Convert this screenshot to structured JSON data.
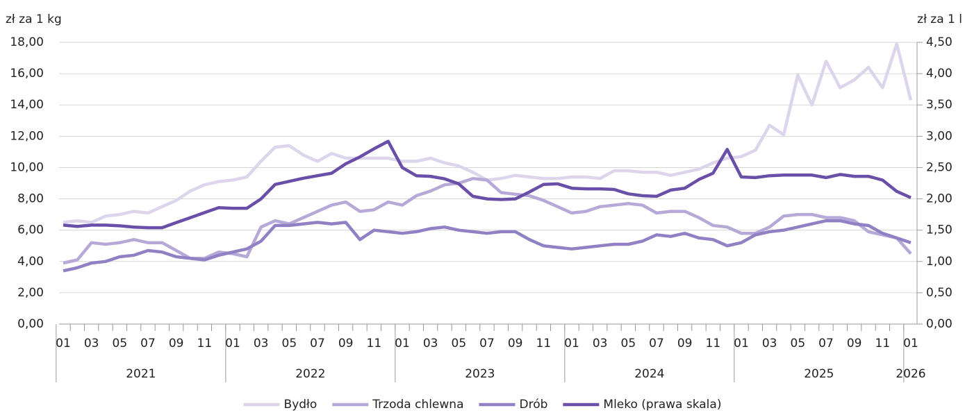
{
  "chart_data": {
    "type": "line",
    "y_label": "zł za 1 kg",
    "y2_label": "zł za 1 l",
    "categories": [
      "01",
      null,
      "03",
      null,
      "05",
      null,
      "07",
      null,
      "09",
      null,
      "11",
      null,
      "01",
      null,
      "03",
      null,
      "05",
      null,
      "07",
      null,
      "09",
      null,
      "11",
      null,
      "01",
      null,
      "03",
      null,
      "05",
      null,
      "07",
      null,
      "09",
      null,
      "11",
      null,
      "01",
      null,
      "03",
      null,
      "05",
      null,
      "07",
      null,
      "09",
      null,
      "11",
      null,
      "01",
      null,
      "03",
      null,
      "05",
      null,
      "07",
      null,
      "09",
      null,
      "11",
      null,
      "01"
    ],
    "years": [
      "2021",
      "2022",
      "2023",
      "2024",
      "2025",
      "2026"
    ],
    "ylim": [
      0,
      18
    ],
    "yticks": [
      {
        "value": 0,
        "label": "0,00"
      },
      {
        "value": 2,
        "label": "2,00"
      },
      {
        "value": 4,
        "label": "4,00"
      },
      {
        "value": 6,
        "label": "6,00"
      },
      {
        "value": 8,
        "label": "8,00"
      },
      {
        "value": 10,
        "label": "10,00"
      },
      {
        "value": 12,
        "label": "12,00"
      },
      {
        "value": 14,
        "label": "14,00"
      },
      {
        "value": 16,
        "label": "16,00"
      },
      {
        "value": 18,
        "label": "18,00"
      }
    ],
    "y2lim": [
      0,
      4.5
    ],
    "y2ticks": [
      {
        "value": 0,
        "label": "0,00"
      },
      {
        "value": 0.5,
        "label": "0,50"
      },
      {
        "value": 1,
        "label": "1,00"
      },
      {
        "value": 1.5,
        "label": "1,50"
      },
      {
        "value": 2,
        "label": "2,00"
      },
      {
        "value": 2.5,
        "label": "2,50"
      },
      {
        "value": 3,
        "label": "3,00"
      },
      {
        "value": 3.5,
        "label": "3,50"
      },
      {
        "value": 4,
        "label": "4,00"
      },
      {
        "value": 4.5,
        "label": "4,50"
      }
    ],
    "grid": true,
    "series": [
      {
        "name": "Bydło",
        "color": "#dcd5ec",
        "values": [
          6.5,
          6.6,
          6.5,
          6.9,
          7.0,
          7.2,
          7.1,
          7.5,
          7.9,
          8.5,
          8.9,
          9.1,
          9.2,
          9.4,
          10.4,
          11.3,
          11.4,
          10.8,
          10.4,
          10.9,
          10.6,
          10.6,
          10.6,
          10.6,
          10.4,
          10.4,
          10.6,
          10.3,
          10.1,
          9.7,
          9.2,
          9.3,
          9.5,
          9.4,
          9.3,
          9.3,
          9.4,
          9.4,
          9.3,
          9.8,
          9.8,
          9.7,
          9.7,
          9.5,
          9.7,
          9.9,
          10.3,
          10.6,
          10.7,
          11.1,
          12.7,
          12.1,
          15.9,
          14.0,
          16.8,
          15.1,
          15.6,
          16.4,
          15.1,
          17.9,
          14.3
        ]
      },
      {
        "name": "Trzoda chlewna",
        "color": "#b6a9d8",
        "values": [
          3.9,
          4.1,
          5.2,
          5.1,
          5.2,
          5.4,
          5.2,
          5.2,
          4.7,
          4.2,
          4.2,
          4.6,
          4.5,
          4.3,
          6.2,
          6.6,
          6.4,
          6.8,
          7.2,
          7.6,
          7.8,
          7.2,
          7.3,
          7.8,
          7.6,
          8.2,
          8.5,
          8.9,
          9.0,
          9.3,
          9.2,
          8.4,
          8.3,
          8.2,
          7.9,
          7.5,
          7.1,
          7.2,
          7.5,
          7.6,
          7.7,
          7.6,
          7.1,
          7.2,
          7.2,
          6.8,
          6.3,
          6.2,
          5.8,
          5.8,
          6.2,
          6.9,
          7.0,
          7.0,
          6.8,
          6.8,
          6.6,
          5.9,
          5.7,
          5.5,
          4.5
        ]
      },
      {
        "name": "Drób",
        "color": "#9080c4",
        "values": [
          3.4,
          3.6,
          3.9,
          4.0,
          4.3,
          4.4,
          4.7,
          4.6,
          4.3,
          4.2,
          4.1,
          4.4,
          4.6,
          4.8,
          5.3,
          6.3,
          6.3,
          6.4,
          6.5,
          6.4,
          6.5,
          5.4,
          6.0,
          5.9,
          5.8,
          5.9,
          6.1,
          6.2,
          6.0,
          5.9,
          5.8,
          5.9,
          5.9,
          5.4,
          5.0,
          4.9,
          4.8,
          4.9,
          5.0,
          5.1,
          5.1,
          5.3,
          5.7,
          5.6,
          5.8,
          5.5,
          5.4,
          5.0,
          5.2,
          5.7,
          5.9,
          6.0,
          6.2,
          6.4,
          6.6,
          6.6,
          6.4,
          6.3,
          5.8,
          5.5,
          5.2
        ]
      },
      {
        "name": "Mleko (prawa skala)",
        "color": "#6a4fa8",
        "axis": "y2",
        "values": [
          1.58,
          1.56,
          1.58,
          1.58,
          1.57,
          1.55,
          1.54,
          1.54,
          1.62,
          1.7,
          1.78,
          1.86,
          1.85,
          1.85,
          2.0,
          2.23,
          2.28,
          2.33,
          2.37,
          2.41,
          2.56,
          2.67,
          2.8,
          2.92,
          2.5,
          2.37,
          2.36,
          2.32,
          2.24,
          2.04,
          2.0,
          1.99,
          2.0,
          2.11,
          2.23,
          2.24,
          2.17,
          2.16,
          2.16,
          2.15,
          2.08,
          2.05,
          2.04,
          2.14,
          2.17,
          2.31,
          2.41,
          2.79,
          2.35,
          2.34,
          2.37,
          2.38,
          2.38,
          2.38,
          2.34,
          2.39,
          2.36,
          2.36,
          2.3,
          2.12,
          2.02
        ]
      }
    ]
  }
}
